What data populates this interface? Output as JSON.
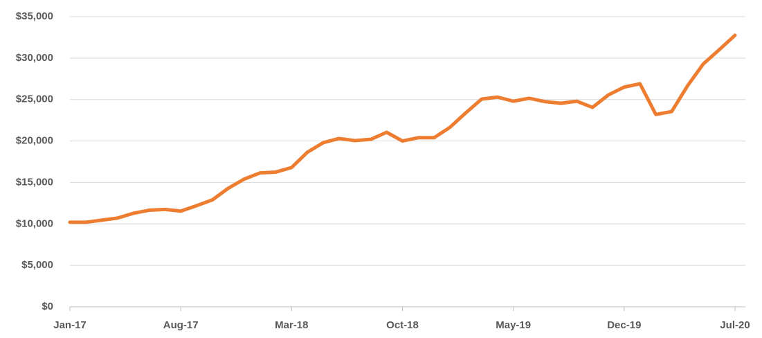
{
  "chart_data": {
    "type": "line",
    "categories": [
      "Jan-17",
      null,
      null,
      null,
      null,
      null,
      null,
      "Aug-17",
      null,
      null,
      null,
      null,
      null,
      null,
      "Mar-18",
      null,
      null,
      null,
      null,
      null,
      null,
      "Oct-18",
      null,
      null,
      null,
      null,
      null,
      null,
      "May-19",
      null,
      null,
      null,
      null,
      null,
      null,
      "Dec-19",
      null,
      null,
      null,
      null,
      null,
      null,
      "Jul-20"
    ],
    "series": [
      {
        "color": "#ed7d31",
        "values": [
          10200,
          10200,
          10450,
          10700,
          11280,
          11650,
          11750,
          11550,
          12200,
          12900,
          14300,
          15400,
          16150,
          16250,
          16800,
          18650,
          19800,
          20300,
          20050,
          20200,
          21050,
          20000,
          20400,
          20400,
          21650,
          23400,
          25050,
          25300,
          24800,
          25150,
          24750,
          24550,
          24800,
          24050,
          25550,
          26500,
          26900,
          23200,
          23550,
          26650,
          29300,
          31000,
          32750
        ]
      }
    ],
    "ylim": [
      0,
      35000
    ],
    "yticks": [
      {
        "value": 0,
        "label": "$0"
      },
      {
        "value": 5000,
        "label": "$5,000"
      },
      {
        "value": 10000,
        "label": "$10,000"
      },
      {
        "value": 15000,
        "label": "$15,000"
      },
      {
        "value": 20000,
        "label": "$20,000"
      },
      {
        "value": 25000,
        "label": "$25,000"
      },
      {
        "value": 30000,
        "label": "$30,000"
      },
      {
        "value": 35000,
        "label": "$35,000"
      }
    ],
    "grid": true
  }
}
